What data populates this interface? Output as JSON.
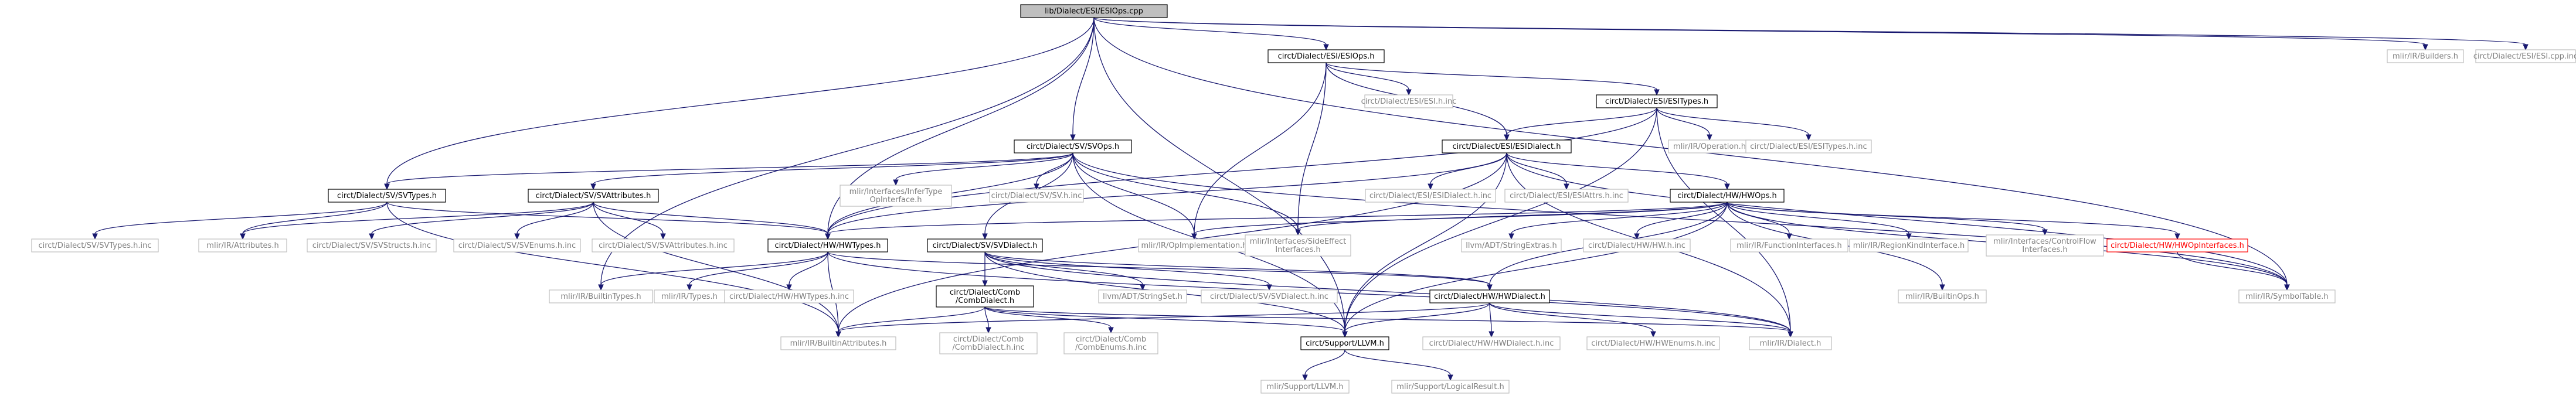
{
  "diagram": {
    "root": "lib/Dialect/ESI/ESIOps.cpp",
    "styles": {
      "root": {
        "fill": "#bfbfbf",
        "stroke": "#000000",
        "text": "#000000"
      },
      "internal": {
        "fill": "#ffffff",
        "stroke": "#000000",
        "text": "#000000"
      },
      "external": {
        "fill": "#ffffff",
        "stroke": "#bfbfbf",
        "text": "#7f7f7f"
      },
      "cycle": {
        "fill": "#ffffff",
        "stroke": "#ff0000",
        "text": "#ff0000"
      },
      "edge": "#191970"
    },
    "nodes": [
      {
        "id": "root",
        "lines": [
          "lib/Dialect/ESI/ESIOps.cpp"
        ],
        "kind": "root"
      },
      {
        "id": "esiops_h",
        "lines": [
          "circt/Dialect/ESI/ESIOps.h"
        ],
        "kind": "internal"
      },
      {
        "id": "builders",
        "lines": [
          "mlir/IR/Builders.h"
        ],
        "kind": "external"
      },
      {
        "id": "esi_cpp_inc",
        "lines": [
          "circt/Dialect/ESI/ESI.cpp.inc"
        ],
        "kind": "external"
      },
      {
        "id": "esitypes_h",
        "lines": [
          "circt/Dialect/ESI/ESITypes.h"
        ],
        "kind": "internal"
      },
      {
        "id": "esi_h_inc",
        "lines": [
          "circt/Dialect/ESI/ESI.h.inc"
        ],
        "kind": "external"
      },
      {
        "id": "svops_h",
        "lines": [
          "circt/Dialect/SV/SVOps.h"
        ],
        "kind": "internal"
      },
      {
        "id": "operation_h",
        "lines": [
          "mlir/IR/Operation.h"
        ],
        "kind": "external"
      },
      {
        "id": "esitypes_h_inc",
        "lines": [
          "circt/Dialect/ESI/ESITypes.h.inc"
        ],
        "kind": "external"
      },
      {
        "id": "esidialect_h",
        "lines": [
          "circt/Dialect/ESI/ESIDialect.h"
        ],
        "kind": "internal"
      },
      {
        "id": "svtypes_h",
        "lines": [
          "circt/Dialect/SV/SVTypes.h"
        ],
        "kind": "internal"
      },
      {
        "id": "svattributes_h",
        "lines": [
          "circt/Dialect/SV/SVAttributes.h"
        ],
        "kind": "internal"
      },
      {
        "id": "infertype",
        "lines": [
          "mlir/Interfaces/InferType",
          "OpInterface.h"
        ],
        "kind": "external"
      },
      {
        "id": "sv_h_inc",
        "lines": [
          "circt/Dialect/SV/SV.h.inc"
        ],
        "kind": "external"
      },
      {
        "id": "esidialect_h_inc",
        "lines": [
          "circt/Dialect/ESI/ESIDialect.h.inc"
        ],
        "kind": "external"
      },
      {
        "id": "esiattrs_h_inc",
        "lines": [
          "circt/Dialect/ESI/ESIAttrs.h.inc"
        ],
        "kind": "external"
      },
      {
        "id": "hwops_h",
        "lines": [
          "circt/Dialect/HW/HWOps.h"
        ],
        "kind": "internal"
      },
      {
        "id": "svtypes_h_inc",
        "lines": [
          "circt/Dialect/SV/SVTypes.h.inc"
        ],
        "kind": "external"
      },
      {
        "id": "attributes_h",
        "lines": [
          "mlir/IR/Attributes.h"
        ],
        "kind": "external"
      },
      {
        "id": "svstructs_h_inc",
        "lines": [
          "circt/Dialect/SV/SVStructs.h.inc"
        ],
        "kind": "external"
      },
      {
        "id": "svenums_h_inc",
        "lines": [
          "circt/Dialect/SV/SVEnums.h.inc"
        ],
        "kind": "external"
      },
      {
        "id": "svattributes_h_inc",
        "lines": [
          "circt/Dialect/SV/SVAttributes.h.inc"
        ],
        "kind": "external"
      },
      {
        "id": "hwtypes_h",
        "lines": [
          "circt/Dialect/HW/HWTypes.h"
        ],
        "kind": "internal"
      },
      {
        "id": "svdialect_h",
        "lines": [
          "circt/Dialect/SV/SVDialect.h"
        ],
        "kind": "internal"
      },
      {
        "id": "opimpl",
        "lines": [
          "mlir/IR/OpImplementation.h"
        ],
        "kind": "external"
      },
      {
        "id": "sideeffect",
        "lines": [
          "mlir/Interfaces/SideEffect",
          "Interfaces.h"
        ],
        "kind": "external"
      },
      {
        "id": "stringextras",
        "lines": [
          "llvm/ADT/StringExtras.h"
        ],
        "kind": "external"
      },
      {
        "id": "hw_h_inc",
        "lines": [
          "circt/Dialect/HW/HW.h.inc"
        ],
        "kind": "external"
      },
      {
        "id": "funcinterfaces",
        "lines": [
          "mlir/IR/FunctionInterfaces.h"
        ],
        "kind": "external"
      },
      {
        "id": "regionkind",
        "lines": [
          "mlir/IR/RegionKindInterface.h"
        ],
        "kind": "external"
      },
      {
        "id": "controlflow",
        "lines": [
          "mlir/Interfaces/ControlFlow",
          "Interfaces.h"
        ],
        "kind": "external"
      },
      {
        "id": "hwopinterfaces",
        "lines": [
          "circt/Dialect/HW/HWOpInterfaces.h"
        ],
        "kind": "cycle"
      },
      {
        "id": "comb_h",
        "lines": [
          "circt/Dialect/Comb",
          "/CombDialect.h"
        ],
        "kind": "internal"
      },
      {
        "id": "stringset",
        "lines": [
          "llvm/ADT/StringSet.h"
        ],
        "kind": "external"
      },
      {
        "id": "svdialect_h_inc",
        "lines": [
          "circt/Dialect/SV/SVDialect.h.inc"
        ],
        "kind": "external"
      },
      {
        "id": "hwdialect_h",
        "lines": [
          "circt/Dialect/HW/HWDialect.h"
        ],
        "kind": "internal"
      },
      {
        "id": "builtinops",
        "lines": [
          "mlir/IR/BuiltinOps.h"
        ],
        "kind": "external"
      },
      {
        "id": "symboltable",
        "lines": [
          "mlir/IR/SymbolTable.h"
        ],
        "kind": "external"
      },
      {
        "id": "builtintypes",
        "lines": [
          "mlir/IR/BuiltinTypes.h"
        ],
        "kind": "external"
      },
      {
        "id": "irtypes",
        "lines": [
          "mlir/IR/Types.h"
        ],
        "kind": "external"
      },
      {
        "id": "hwtypes_h_inc",
        "lines": [
          "circt/Dialect/HW/HWTypes.h.inc"
        ],
        "kind": "external"
      },
      {
        "id": "comb_h_inc",
        "lines": [
          "circt/Dialect/Comb",
          "/CombDialect.h.inc"
        ],
        "kind": "external"
      },
      {
        "id": "combenums",
        "lines": [
          "circt/Dialect/Comb",
          "/CombEnums.h.inc"
        ],
        "kind": "external"
      },
      {
        "id": "builtinattrs",
        "lines": [
          "mlir/IR/BuiltinAttributes.h"
        ],
        "kind": "external"
      },
      {
        "id": "llvm_h",
        "lines": [
          "circt/Support/LLVM.h"
        ],
        "kind": "internal"
      },
      {
        "id": "hwdialect_h_inc",
        "lines": [
          "circt/Dialect/HW/HWDialect.h.inc"
        ],
        "kind": "external"
      },
      {
        "id": "hwenums",
        "lines": [
          "circt/Dialect/HW/HWEnums.h.inc"
        ],
        "kind": "external"
      },
      {
        "id": "dialect_h",
        "lines": [
          "mlir/IR/Dialect.h"
        ],
        "kind": "external"
      },
      {
        "id": "mlir_llvm",
        "lines": [
          "mlir/Support/LLVM.h"
        ],
        "kind": "external"
      },
      {
        "id": "logicalresult",
        "lines": [
          "mlir/Support/LogicalResult.h"
        ],
        "kind": "external"
      }
    ],
    "edges": [
      [
        "root",
        "esiops_h"
      ],
      [
        "root",
        "builders"
      ],
      [
        "root",
        "esi_cpp_inc"
      ],
      [
        "root",
        "svops_h"
      ],
      [
        "root",
        "svtypes_h"
      ],
      [
        "root",
        "hwtypes_h"
      ],
      [
        "root",
        "builtintypes"
      ],
      [
        "root",
        "llvm_h"
      ],
      [
        "root",
        "symboltable"
      ],
      [
        "esiops_h",
        "esitypes_h"
      ],
      [
        "esiops_h",
        "esi_h_inc"
      ],
      [
        "esiops_h",
        "esidialect_h"
      ],
      [
        "esiops_h",
        "opimpl"
      ],
      [
        "esiops_h",
        "sideeffect"
      ],
      [
        "esitypes_h",
        "operation_h"
      ],
      [
        "esitypes_h",
        "esitypes_h_inc"
      ],
      [
        "esitypes_h",
        "esidialect_h"
      ],
      [
        "esitypes_h",
        "hwtypes_h"
      ],
      [
        "esitypes_h",
        "llvm_h"
      ],
      [
        "esitypes_h",
        "dialect_h"
      ],
      [
        "esidialect_h",
        "esidialect_h_inc"
      ],
      [
        "esidialect_h",
        "esiattrs_h_inc"
      ],
      [
        "esidialect_h",
        "hwops_h"
      ],
      [
        "esidialect_h",
        "hwtypes_h"
      ],
      [
        "esidialect_h",
        "llvm_h"
      ],
      [
        "esidialect_h",
        "dialect_h"
      ],
      [
        "esidialect_h",
        "builtinattrs"
      ],
      [
        "esidialect_h",
        "symboltable"
      ],
      [
        "svops_h",
        "svtypes_h"
      ],
      [
        "svops_h",
        "svattributes_h"
      ],
      [
        "svops_h",
        "infertype"
      ],
      [
        "svops_h",
        "sv_h_inc"
      ],
      [
        "svops_h",
        "svdialect_h"
      ],
      [
        "svops_h",
        "hwtypes_h"
      ],
      [
        "svops_h",
        "opimpl"
      ],
      [
        "svops_h",
        "sideeffect"
      ],
      [
        "svops_h",
        "llvm_h"
      ],
      [
        "svops_h",
        "symboltable"
      ],
      [
        "svtypes_h",
        "svtypes_h_inc"
      ],
      [
        "svtypes_h",
        "attributes_h"
      ],
      [
        "svtypes_h",
        "hwtypes_h"
      ],
      [
        "svtypes_h",
        "builtinattrs"
      ],
      [
        "svattributes_h",
        "attributes_h"
      ],
      [
        "svattributes_h",
        "svstructs_h_inc"
      ],
      [
        "svattributes_h",
        "svenums_h_inc"
      ],
      [
        "svattributes_h",
        "svattributes_h_inc"
      ],
      [
        "svattributes_h",
        "hwtypes_h"
      ],
      [
        "svattributes_h",
        "builtinattrs"
      ],
      [
        "hwops_h",
        "opimpl"
      ],
      [
        "hwops_h",
        "sideeffect"
      ],
      [
        "hwops_h",
        "stringextras"
      ],
      [
        "hwops_h",
        "hw_h_inc"
      ],
      [
        "hwops_h",
        "funcinterfaces"
      ],
      [
        "hwops_h",
        "regionkind"
      ],
      [
        "hwops_h",
        "controlflow"
      ],
      [
        "hwops_h",
        "hwopinterfaces"
      ],
      [
        "hwops_h",
        "hwdialect_h"
      ],
      [
        "hwops_h",
        "hwtypes_h"
      ],
      [
        "hwops_h",
        "builtinops"
      ],
      [
        "hwops_h",
        "symboltable"
      ],
      [
        "hwops_h",
        "llvm_h"
      ],
      [
        "hwtypes_h",
        "builtintypes"
      ],
      [
        "hwtypes_h",
        "irtypes"
      ],
      [
        "hwtypes_h",
        "hwtypes_h_inc"
      ],
      [
        "hwtypes_h",
        "hwdialect_h"
      ],
      [
        "hwtypes_h",
        "builtinattrs"
      ],
      [
        "hwtypes_h",
        "dialect_h"
      ],
      [
        "svdialect_h",
        "comb_h"
      ],
      [
        "svdialect_h",
        "stringset"
      ],
      [
        "svdialect_h",
        "svdialect_h_inc"
      ],
      [
        "svdialect_h",
        "hwdialect_h"
      ],
      [
        "svdialect_h",
        "llvm_h"
      ],
      [
        "svdialect_h",
        "dialect_h"
      ],
      [
        "comb_h",
        "comb_h_inc"
      ],
      [
        "comb_h",
        "combenums"
      ],
      [
        "comb_h",
        "builtinattrs"
      ],
      [
        "comb_h",
        "llvm_h"
      ],
      [
        "comb_h",
        "dialect_h"
      ],
      [
        "hwdialect_h",
        "hwdialect_h_inc"
      ],
      [
        "hwdialect_h",
        "hwenums"
      ],
      [
        "hwdialect_h",
        "llvm_h"
      ],
      [
        "hwdialect_h",
        "dialect_h"
      ],
      [
        "hwdialect_h",
        "builtinattrs"
      ],
      [
        "hwopinterfaces",
        "symboltable"
      ],
      [
        "llvm_h",
        "mlir_llvm"
      ],
      [
        "llvm_h",
        "logicalresult"
      ]
    ]
  }
}
